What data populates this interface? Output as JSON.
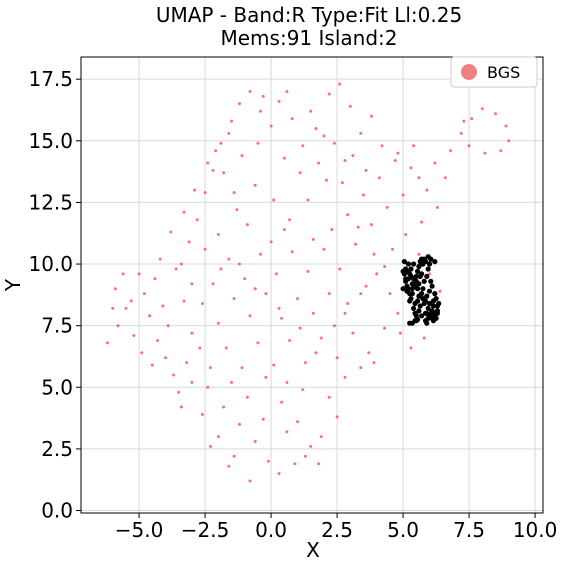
{
  "chart_data": {
    "type": "scatter",
    "title_line1": "UMAP  -  Band:R Type:Fit Ll:0.25",
    "title_line2": "Mems:91 Island:2",
    "xlabel": "X",
    "ylabel": "Y",
    "xlim": [
      -7.2,
      10.3
    ],
    "ylim": [
      -0.1,
      18.4
    ],
    "xticks": [
      -5.0,
      -2.5,
      0.0,
      2.5,
      5.0,
      7.5,
      10.0
    ],
    "yticks": [
      0.0,
      2.5,
      5.0,
      7.5,
      10.0,
      12.5,
      15.0,
      17.5
    ],
    "xtick_labels": [
      "−5.0",
      "−2.5",
      "0.0",
      "2.5",
      "5.0",
      "7.5",
      "10.0"
    ],
    "ytick_labels": [
      "0.0",
      "2.5",
      "5.0",
      "7.5",
      "10.0",
      "12.5",
      "15.0",
      "17.5"
    ],
    "grid": true,
    "legend": {
      "position": "top-right",
      "entries": [
        {
          "label": "BGS",
          "color": "#f08080"
        }
      ]
    },
    "colors": {
      "background_points": "#ff3333",
      "member_points": "#000000",
      "legend_marker": "#f08080"
    },
    "series": [
      {
        "name": "BGS",
        "color": "#ff3333",
        "points": [
          [
            -6.2,
            6.8
          ],
          [
            -5.8,
            7.5
          ],
          [
            -5.5,
            8.2
          ],
          [
            -5.9,
            9.0
          ],
          [
            -5.0,
            9.6
          ],
          [
            -4.8,
            8.8
          ],
          [
            -4.6,
            7.9
          ],
          [
            -4.3,
            6.9
          ],
          [
            -4.0,
            6.2
          ],
          [
            -3.7,
            5.5
          ],
          [
            -3.5,
            4.8
          ],
          [
            -3.2,
            6.0
          ],
          [
            -3.0,
            7.2
          ],
          [
            -3.3,
            8.5
          ],
          [
            -3.6,
            9.8
          ],
          [
            -3.1,
            10.9
          ],
          [
            -2.8,
            11.8
          ],
          [
            -2.5,
            12.9
          ],
          [
            -2.2,
            13.8
          ],
          [
            -1.9,
            14.9
          ],
          [
            -1.5,
            15.8
          ],
          [
            -1.2,
            16.5
          ],
          [
            -0.8,
            17.0
          ],
          [
            -0.4,
            16.2
          ],
          [
            0.0,
            15.6
          ],
          [
            0.3,
            16.6
          ],
          [
            0.8,
            15.9
          ],
          [
            1.2,
            14.8
          ],
          [
            1.7,
            15.5
          ],
          [
            2.2,
            16.9
          ],
          [
            2.6,
            17.3
          ],
          [
            3.0,
            16.4
          ],
          [
            3.4,
            15.3
          ],
          [
            3.8,
            16.0
          ],
          [
            2.8,
            14.2
          ],
          [
            2.1,
            13.4
          ],
          [
            1.4,
            12.6
          ],
          [
            0.7,
            11.8
          ],
          [
            0.1,
            12.6
          ],
          [
            -0.6,
            13.2
          ],
          [
            -1.3,
            12.2
          ],
          [
            -2.0,
            11.2
          ],
          [
            -1.6,
            10.2
          ],
          [
            -1.0,
            9.4
          ],
          [
            -0.4,
            10.4
          ],
          [
            0.2,
            9.6
          ],
          [
            0.8,
            10.5
          ],
          [
            1.4,
            9.7
          ],
          [
            2.0,
            10.6
          ],
          [
            2.6,
            9.8
          ],
          [
            3.2,
            10.8
          ],
          [
            3.8,
            11.6
          ],
          [
            4.4,
            12.3
          ],
          [
            5.0,
            12.8
          ],
          [
            5.6,
            13.5
          ],
          [
            6.2,
            14.1
          ],
          [
            6.8,
            14.6
          ],
          [
            5.4,
            14.8
          ],
          [
            4.7,
            14.2
          ],
          [
            4.1,
            13.5
          ],
          [
            3.5,
            12.8
          ],
          [
            2.9,
            12.0
          ],
          [
            2.3,
            11.4
          ],
          [
            1.6,
            11.0
          ],
          [
            1.0,
            8.6
          ],
          [
            0.4,
            7.8
          ],
          [
            -0.2,
            8.8
          ],
          [
            -0.8,
            7.9
          ],
          [
            -1.4,
            8.6
          ],
          [
            -2.0,
            7.6
          ],
          [
            -2.6,
            8.4
          ],
          [
            -2.2,
            9.2
          ],
          [
            -1.7,
            6.6
          ],
          [
            -1.1,
            5.8
          ],
          [
            -0.5,
            6.8
          ],
          [
            0.1,
            5.9
          ],
          [
            0.7,
            6.9
          ],
          [
            1.3,
            6.0
          ],
          [
            1.9,
            7.0
          ],
          [
            2.5,
            6.2
          ],
          [
            3.1,
            7.2
          ],
          [
            3.7,
            6.4
          ],
          [
            4.3,
            7.4
          ],
          [
            4.8,
            8.0
          ],
          [
            4.5,
            8.8
          ],
          [
            4.0,
            9.6
          ],
          [
            3.4,
            8.8
          ],
          [
            2.8,
            8.0
          ],
          [
            2.2,
            8.8
          ],
          [
            1.6,
            8.0
          ],
          [
            -2.4,
            5.0
          ],
          [
            -1.8,
            4.2
          ],
          [
            -1.2,
            3.5
          ],
          [
            -0.6,
            2.8
          ],
          [
            -0.1,
            2.0
          ],
          [
            0.3,
            1.5
          ],
          [
            -0.8,
            1.2
          ],
          [
            -1.4,
            2.2
          ],
          [
            -2.0,
            3.0
          ],
          [
            -0.3,
            3.7
          ],
          [
            0.4,
            4.4
          ],
          [
            1.0,
            3.6
          ],
          [
            1.5,
            2.6
          ],
          [
            1.8,
            1.9
          ],
          [
            1.2,
            4.9
          ],
          [
            0.6,
            5.2
          ],
          [
            2.2,
            4.6
          ],
          [
            2.8,
            5.4
          ],
          [
            3.4,
            5.8
          ],
          [
            3.9,
            6.0
          ],
          [
            -4.2,
            10.2
          ],
          [
            -3.8,
            11.3
          ],
          [
            -3.3,
            12.1
          ],
          [
            -2.9,
            13.0
          ],
          [
            -2.4,
            14.1
          ],
          [
            -1.8,
            13.7
          ],
          [
            -1.1,
            14.4
          ],
          [
            -0.5,
            14.9
          ],
          [
            0.5,
            14.3
          ],
          [
            1.1,
            13.7
          ],
          [
            1.8,
            14.1
          ],
          [
            2.4,
            14.9
          ],
          [
            3.1,
            14.4
          ],
          [
            3.6,
            13.8
          ],
          [
            4.2,
            14.8
          ],
          [
            4.8,
            14.5
          ],
          [
            5.3,
            13.9
          ],
          [
            5.9,
            13.0
          ],
          [
            6.3,
            12.3
          ],
          [
            5.7,
            11.7
          ],
          [
            5.1,
            11.2
          ],
          [
            4.6,
            10.6
          ],
          [
            6.0,
            9.6
          ],
          [
            6.4,
            8.9
          ],
          [
            6.2,
            7.8
          ],
          [
            5.8,
            7.0
          ],
          [
            5.3,
            6.6
          ],
          [
            4.9,
            7.2
          ],
          [
            5.6,
            10.4
          ],
          [
            6.6,
            13.5
          ],
          [
            7.2,
            15.3
          ],
          [
            7.6,
            15.9
          ],
          [
            8.0,
            16.3
          ],
          [
            8.5,
            16.1
          ],
          [
            8.9,
            15.6
          ],
          [
            9.0,
            15.0
          ],
          [
            8.7,
            14.6
          ],
          [
            8.1,
            14.5
          ],
          [
            7.5,
            14.8
          ],
          [
            7.3,
            15.8
          ],
          [
            -5.2,
            7.1
          ],
          [
            -4.9,
            6.4
          ],
          [
            -4.5,
            5.9
          ],
          [
            -4.1,
            8.3
          ],
          [
            -3.9,
            7.5
          ],
          [
            -2.7,
            6.6
          ],
          [
            -2.3,
            5.8
          ],
          [
            -1.5,
            5.2
          ],
          [
            -0.9,
            4.6
          ],
          [
            -0.2,
            5.4
          ],
          [
            0.6,
            3.2
          ],
          [
            1.3,
            2.2
          ],
          [
            0.9,
            1.9
          ],
          [
            -1.6,
            1.8
          ],
          [
            -2.3,
            2.6
          ],
          [
            -2.6,
            3.9
          ],
          [
            -3.0,
            5.2
          ],
          [
            -3.4,
            4.2
          ],
          [
            1.9,
            3.0
          ],
          [
            2.5,
            3.8
          ],
          [
            0.0,
            10.9
          ],
          [
            0.5,
            11.4
          ],
          [
            -0.9,
            11.6
          ],
          [
            -1.4,
            12.9
          ],
          [
            -2.1,
            14.6
          ],
          [
            -1.6,
            15.3
          ],
          [
            -0.3,
            16.8
          ],
          [
            0.6,
            17.0
          ],
          [
            1.5,
            16.2
          ],
          [
            2.0,
            15.2
          ],
          [
            2.7,
            13.3
          ],
          [
            3.3,
            11.5
          ],
          [
            3.9,
            10.4
          ],
          [
            4.3,
            9.9
          ],
          [
            3.6,
            9.1
          ],
          [
            2.9,
            8.4
          ],
          [
            2.4,
            7.5
          ],
          [
            1.7,
            6.4
          ],
          [
            1.1,
            7.4
          ],
          [
            0.3,
            8.2
          ],
          [
            -0.6,
            9.0
          ],
          [
            -1.2,
            10.0
          ],
          [
            -1.9,
            9.8
          ],
          [
            -2.5,
            10.6
          ],
          [
            -3.0,
            9.2
          ],
          [
            -3.4,
            10.0
          ],
          [
            -4.4,
            9.4
          ],
          [
            -5.3,
            8.5
          ],
          [
            -5.6,
            9.6
          ],
          [
            -6.0,
            8.2
          ]
        ]
      },
      {
        "name": "",
        "color": "#000000",
        "points": [
          [
            5.05,
            10.1
          ],
          [
            5.15,
            9.7
          ],
          [
            5.1,
            9.3
          ],
          [
            5.2,
            9.0
          ],
          [
            5.35,
            8.8
          ],
          [
            5.25,
            8.5
          ],
          [
            5.4,
            8.2
          ],
          [
            5.5,
            9.5
          ],
          [
            5.6,
            9.9
          ],
          [
            5.7,
            10.2
          ],
          [
            5.85,
            10.1
          ],
          [
            5.95,
            9.8
          ],
          [
            6.05,
            10.2
          ],
          [
            5.6,
            9.2
          ],
          [
            5.75,
            9.0
          ],
          [
            5.9,
            8.7
          ],
          [
            6.0,
            8.4
          ],
          [
            6.1,
            8.1
          ],
          [
            6.2,
            7.9
          ],
          [
            6.3,
            8.3
          ],
          [
            6.25,
            8.6
          ],
          [
            5.85,
            8.0
          ],
          [
            5.95,
            7.8
          ],
          [
            5.5,
            7.7
          ],
          [
            5.35,
            7.6
          ],
          [
            5.45,
            8.0
          ],
          [
            5.55,
            8.5
          ],
          [
            5.7,
            8.8
          ],
          [
            5.3,
            9.8
          ],
          [
            5.2,
            10.0
          ],
          [
            5.0,
            9.0
          ],
          [
            5.15,
            8.9
          ],
          [
            5.8,
            9.3
          ],
          [
            6.1,
            9.1
          ],
          [
            6.3,
            8.0
          ],
          [
            6.15,
            7.7
          ],
          [
            6.0,
            7.9
          ],
          [
            5.9,
            7.6
          ],
          [
            5.65,
            8.3
          ],
          [
            5.4,
            9.4
          ],
          [
            5.25,
            9.6
          ],
          [
            5.1,
            9.8
          ],
          [
            5.95,
            10.3
          ],
          [
            6.2,
            10.1
          ],
          [
            5.75,
            10.0
          ],
          [
            5.55,
            9.7
          ],
          [
            5.65,
            9.5
          ],
          [
            5.45,
            9.1
          ],
          [
            5.3,
            8.6
          ],
          [
            5.6,
            8.1
          ],
          [
            5.8,
            8.4
          ],
          [
            6.0,
            8.9
          ],
          [
            6.15,
            8.5
          ],
          [
            6.25,
            7.8
          ],
          [
            5.5,
            7.9
          ],
          [
            5.35,
            9.2
          ],
          [
            5.2,
            9.4
          ],
          [
            5.05,
            9.6
          ],
          [
            5.9,
            9.5
          ],
          [
            6.05,
            9.3
          ],
          [
            6.2,
            8.8
          ],
          [
            6.35,
            8.4
          ],
          [
            6.1,
            7.8
          ],
          [
            5.85,
            7.7
          ],
          [
            5.7,
            7.9
          ],
          [
            5.45,
            8.4
          ],
          [
            5.25,
            8.8
          ],
          [
            5.15,
            9.1
          ],
          [
            5.55,
            9.0
          ],
          [
            5.75,
            8.6
          ],
          [
            5.95,
            8.2
          ],
          [
            6.05,
            8.0
          ],
          [
            5.65,
            10.1
          ],
          [
            5.4,
            10.0
          ],
          [
            5.3,
            9.5
          ],
          [
            5.1,
            9.4
          ],
          [
            5.0,
            9.7
          ],
          [
            5.8,
            10.2
          ],
          [
            6.0,
            10.0
          ],
          [
            5.7,
            9.6
          ],
          [
            5.5,
            9.3
          ],
          [
            5.35,
            9.0
          ],
          [
            5.6,
            8.7
          ],
          [
            5.85,
            8.5
          ],
          [
            6.15,
            8.3
          ],
          [
            6.3,
            8.1
          ],
          [
            6.2,
            8.0
          ],
          [
            5.9,
            8.0
          ],
          [
            5.45,
            7.7
          ],
          [
            5.25,
            7.6
          ],
          [
            5.55,
            7.75
          ]
        ]
      }
    ]
  }
}
